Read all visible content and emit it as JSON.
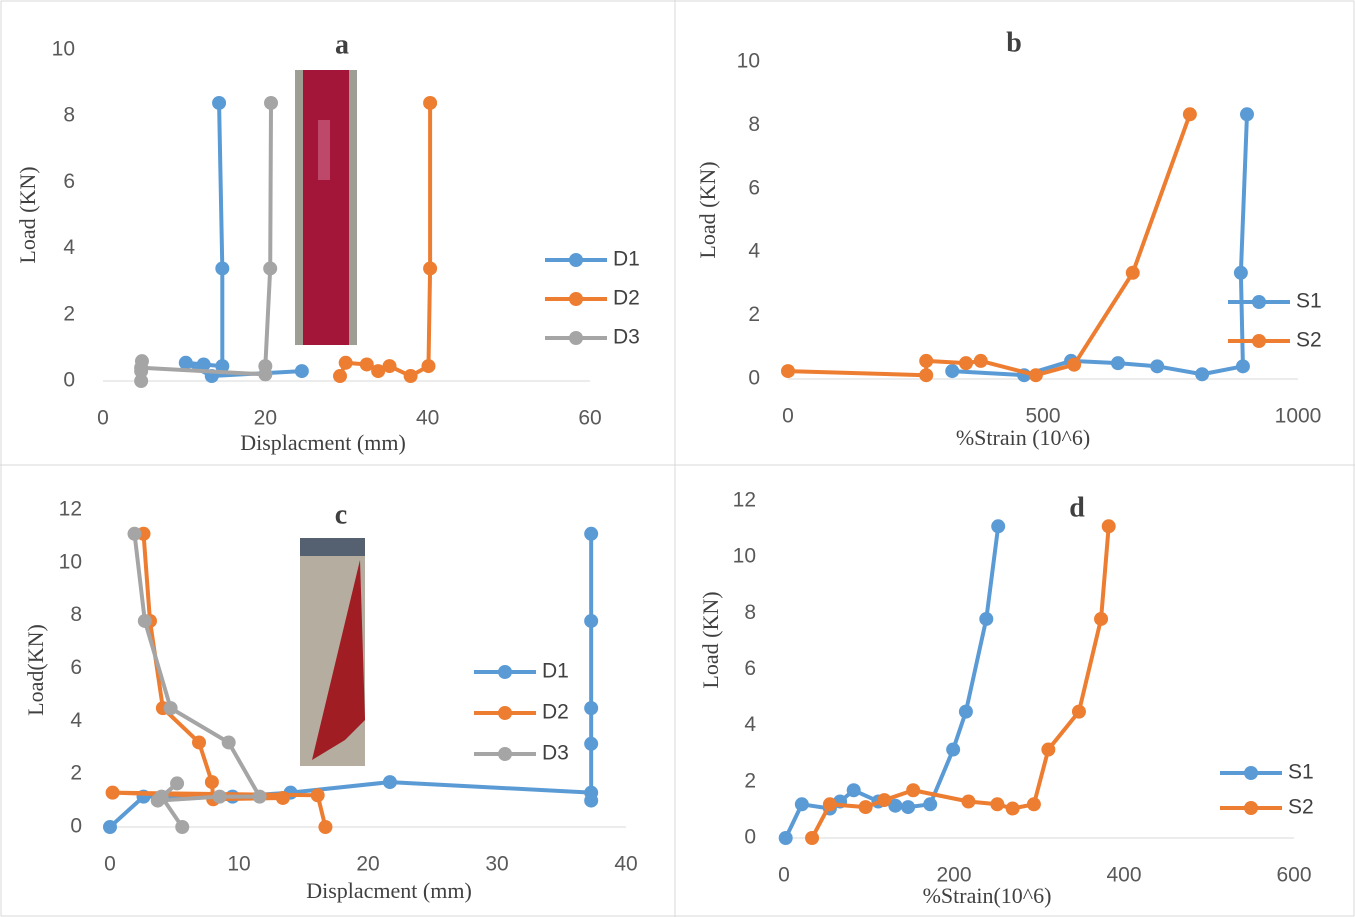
{
  "chart_data": [
    {
      "type": "line",
      "title": "a",
      "xlabel": "Displacment (mm)",
      "ylabel": "Load (KN)",
      "xlim": [
        0,
        60
      ],
      "xticks": [
        0,
        20,
        40,
        60
      ],
      "ylim": [
        0,
        10
      ],
      "yticks": [
        0,
        2,
        4,
        6,
        8,
        10
      ],
      "legend": "right",
      "series": [
        {
          "name": "D1",
          "color": "#5b9bd5",
          "x": [
            24.5,
            13.4,
            10.2,
            12.4,
            14.7,
            14.7,
            14.3
          ],
          "y": [
            0.3,
            0.15,
            0.55,
            0.5,
            0.45,
            3.4,
            8.4
          ]
        },
        {
          "name": "D2",
          "color": "#ed7d31",
          "x": [
            29.2,
            29.9,
            32.5,
            33.9,
            35.3,
            37.9,
            40.1,
            40.3,
            40.3
          ],
          "y": [
            0.15,
            0.55,
            0.5,
            0.3,
            0.45,
            0.15,
            0.45,
            3.4,
            8.4
          ]
        },
        {
          "name": "D3",
          "color": "#a5a5a5",
          "x": [
            4.7,
            4.7,
            4.8,
            4.7,
            20,
            20,
            20.6,
            20.7
          ],
          "y": [
            0,
            0.3,
            0.6,
            0.4,
            0.2,
            0.45,
            3.4,
            8.4
          ]
        }
      ]
    },
    {
      "type": "line",
      "title": "b",
      "xlabel": "%Strain (10^6)",
      "ylabel": "Load (KN)",
      "xlim": [
        0,
        1000
      ],
      "xticks": [
        0,
        500,
        1000
      ],
      "ylim": [
        0,
        10
      ],
      "yticks": [
        0,
        2,
        4,
        6,
        8,
        10
      ],
      "legend": "lower right",
      "series": [
        {
          "name": "S1",
          "color": "#5b9bd5",
          "x": [
            322,
            463,
            555,
            647,
            724,
            812,
            892,
            888,
            900
          ],
          "y": [
            0.25,
            0.12,
            0.57,
            0.5,
            0.4,
            0.15,
            0.4,
            3.35,
            8.35
          ]
        },
        {
          "name": "S2",
          "color": "#ed7d31",
          "x": [
            0,
            271,
            271,
            349,
            378,
            486,
            561,
            676,
            788
          ],
          "y": [
            0.25,
            0.12,
            0.57,
            0.5,
            0.57,
            0.12,
            0.45,
            3.35,
            8.35
          ]
        }
      ]
    },
    {
      "type": "line",
      "title": "c",
      "xlabel": "Displacment (mm)",
      "ylabel": "Load(KN)",
      "xlim": [
        0,
        40
      ],
      "xticks": [
        0,
        10,
        20,
        30,
        40
      ],
      "ylim": [
        0,
        12
      ],
      "yticks": [
        0,
        2,
        4,
        6,
        8,
        10,
        12
      ],
      "legend": "right",
      "series": [
        {
          "name": "D1",
          "color": "#5b9bd5",
          "x": [
            0,
            2.6,
            9.5,
            14,
            21.7,
            37.3,
            37.3,
            37.3,
            37.3,
            37.3,
            37.3
          ],
          "y": [
            0,
            1.15,
            1.15,
            1.3,
            1.7,
            1.3,
            1.0,
            3.15,
            4.5,
            7.8,
            11.1
          ]
        },
        {
          "name": "D2",
          "color": "#ed7d31",
          "x": [
            16.7,
            16.1,
            0.2,
            13.4,
            8,
            7.9,
            6.9,
            4.1,
            3.1,
            2.6
          ],
          "y": [
            0,
            1.2,
            1.3,
            1.1,
            1.05,
            1.7,
            3.2,
            4.5,
            7.8,
            11.1
          ]
        },
        {
          "name": "D3",
          "color": "#a5a5a5",
          "x": [
            5.6,
            4,
            5.2,
            3.7,
            8.5,
            11.6,
            9.2,
            4.7,
            2.7,
            1.9
          ],
          "y": [
            0,
            1.15,
            1.65,
            1.0,
            1.15,
            1.15,
            3.2,
            4.5,
            7.8,
            11.1
          ]
        }
      ]
    },
    {
      "type": "line",
      "title": "d",
      "xlabel": "%Strain(10^6)",
      "ylabel": "Load (KN)",
      "xlim": [
        0,
        600
      ],
      "xticks": [
        0,
        200,
        400,
        600
      ],
      "ylim": [
        0,
        12
      ],
      "yticks": [
        0,
        2,
        4,
        6,
        8,
        10,
        12
      ],
      "legend": "lower right",
      "series": [
        {
          "name": "S1",
          "color": "#5b9bd5",
          "x": [
            2,
            21,
            54,
            66,
            82,
            111,
            131,
            146,
            172,
            199,
            214,
            238,
            252
          ],
          "y": [
            0,
            1.2,
            1.05,
            1.3,
            1.7,
            1.3,
            1.15,
            1.1,
            1.2,
            3.15,
            4.5,
            7.8,
            11.1
          ]
        },
        {
          "name": "S2",
          "color": "#ed7d31",
          "x": [
            33,
            54,
            96,
            118,
            152,
            217,
            251,
            269,
            294,
            311,
            347,
            373,
            382
          ],
          "y": [
            0,
            1.2,
            1.1,
            1.35,
            1.7,
            1.3,
            1.2,
            1.05,
            1.2,
            3.15,
            4.5,
            7.8,
            11.1
          ]
        }
      ]
    }
  ]
}
